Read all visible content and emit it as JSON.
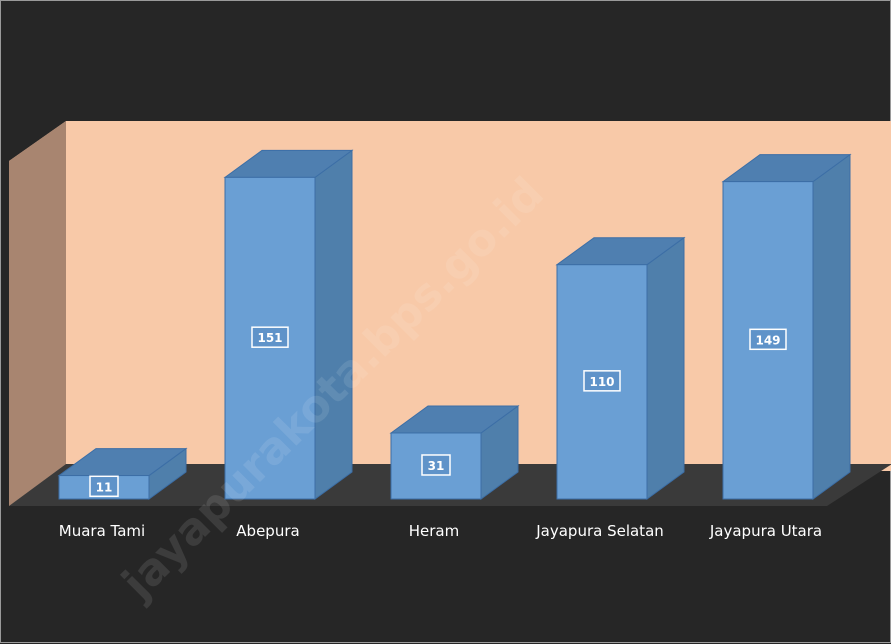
{
  "chart_data": {
    "type": "bar",
    "style": "3d-column",
    "categories": [
      "Muara Tami",
      "Abepura",
      "Heram",
      "Jayapura Selatan",
      "Jayapura Utara"
    ],
    "values": [
      11,
      151,
      31,
      110,
      149
    ],
    "title": "",
    "xlabel": "",
    "ylabel": "",
    "ylim": [
      0,
      160
    ],
    "grid": false,
    "legend": "none",
    "data_labels": true
  },
  "watermark": "jayapurakota.bps.go.id",
  "colors": {
    "background": "#262626",
    "back_wall": "#f8c9a8",
    "side_wall": "#a88570",
    "floor": "#3a3a3a",
    "bar_front": "#6a9fd4",
    "bar_top": "#4f7fb0",
    "bar_side": "#4f7fab",
    "bar_edge": "#3c6ea6"
  }
}
